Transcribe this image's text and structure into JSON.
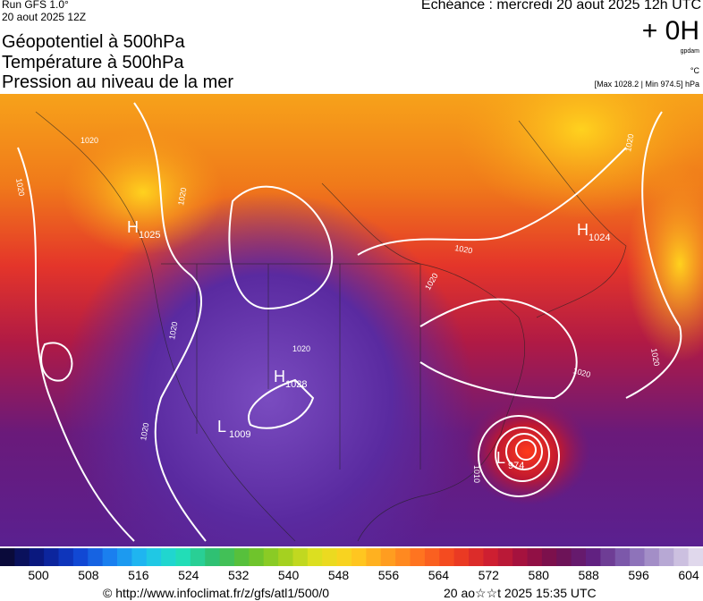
{
  "header": {
    "run": "Run GFS 1.0°",
    "date": "20 aout 2025 12Z",
    "titles": [
      "Géopotentiel à 500hPa",
      "Température à 500hPa",
      "Pression au niveau de la mer"
    ],
    "deadline": "Echéance : mercredi 20 aout 2025 12h UTC",
    "offset": "+ 0H",
    "unit_gpdam": "gpdam",
    "unit_temp": "°C",
    "range": "[Max 1028.2 | Min 974.5] hPa"
  },
  "map": {
    "centers": [
      {
        "letter": "H",
        "value": "1025"
      },
      {
        "letter": "H",
        "value": "1024"
      },
      {
        "letter": "H",
        "value": "1028"
      },
      {
        "letter": "L",
        "value": "1009"
      },
      {
        "letter": "L",
        "value": "974"
      }
    ],
    "isobar_labels": [
      "1020",
      "1020",
      "1020",
      "1020",
      "1020",
      "1020",
      "1020",
      "1020",
      "1020",
      "1020",
      "1020",
      "1010"
    ]
  },
  "colorbar": {
    "labels": [
      500,
      508,
      516,
      524,
      532,
      540,
      548,
      556,
      564,
      572,
      580,
      588,
      596,
      604
    ]
  },
  "footer": {
    "source": "© http://www.infoclimat.fr/z/gfs/atl1/500/0",
    "generated": "20 ao☆☆t 2025 15:35 UTC"
  }
}
